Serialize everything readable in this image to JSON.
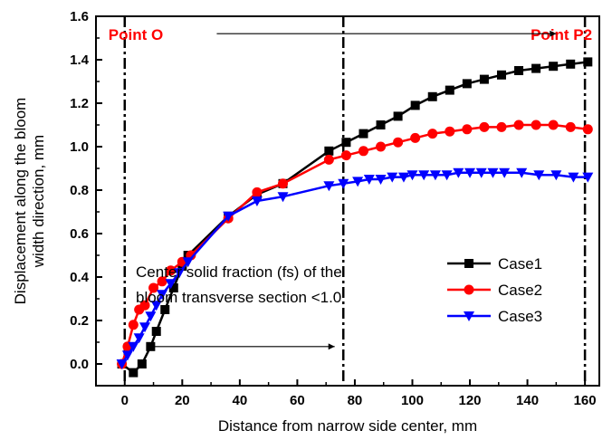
{
  "chart_data": {
    "type": "line",
    "xlabel": "Distance from narrow side center, mm",
    "ylabel_lines": [
      "Displacement along the bloom",
      "width direction, mm"
    ],
    "xlim": [
      -10,
      165
    ],
    "ylim": [
      -0.1,
      1.6
    ],
    "x_ticks": [
      "0",
      "20",
      "40",
      "60",
      "80",
      "100",
      "120",
      "140",
      "160"
    ],
    "x_tick_values": [
      0,
      20,
      40,
      60,
      80,
      100,
      120,
      140,
      160
    ],
    "y_ticks": [
      "0.0",
      "0.2",
      "0.4",
      "0.6",
      "0.8",
      "1.0",
      "1.2",
      "1.4",
      "1.6"
    ],
    "y_tick_values": [
      0.0,
      0.2,
      0.4,
      0.6,
      0.8,
      1.0,
      1.2,
      1.4,
      1.6
    ],
    "grid": false,
    "legend_position": "right-middle",
    "colors": {
      "case1": "#000000",
      "case2": "#ff0000",
      "case3": "#0000ff",
      "point_label": "#ff0000"
    },
    "series": [
      {
        "name": "Case1",
        "marker": "square",
        "color": "#000000",
        "x": [
          -1,
          3,
          6,
          9,
          11,
          14,
          17,
          20,
          22,
          36,
          46,
          55,
          71,
          77,
          83,
          89,
          95,
          101,
          107,
          113,
          119,
          125,
          131,
          137,
          143,
          149,
          155,
          161
        ],
        "y": [
          0.0,
          -0.04,
          0.0,
          0.08,
          0.15,
          0.25,
          0.35,
          0.45,
          0.5,
          0.68,
          0.78,
          0.83,
          0.98,
          1.02,
          1.06,
          1.1,
          1.14,
          1.19,
          1.23,
          1.26,
          1.29,
          1.31,
          1.33,
          1.35,
          1.36,
          1.37,
          1.38,
          1.39
        ]
      },
      {
        "name": "Case2",
        "marker": "circle",
        "color": "#ff0000",
        "x": [
          -1,
          1,
          3,
          5,
          7,
          10,
          13,
          16,
          20,
          23,
          36,
          46,
          55,
          71,
          77,
          83,
          89,
          95,
          101,
          107,
          113,
          119,
          125,
          131,
          137,
          143,
          149,
          155,
          161
        ],
        "y": [
          0.0,
          0.08,
          0.18,
          0.25,
          0.27,
          0.35,
          0.38,
          0.43,
          0.47,
          0.5,
          0.67,
          0.79,
          0.83,
          0.94,
          0.96,
          0.98,
          1.0,
          1.02,
          1.04,
          1.06,
          1.07,
          1.08,
          1.09,
          1.09,
          1.1,
          1.1,
          1.1,
          1.09,
          1.08
        ]
      },
      {
        "name": "Case3",
        "marker": "triangle-down",
        "color": "#0000ff",
        "x": [
          -1,
          1,
          3,
          5,
          7,
          9,
          11,
          13,
          16,
          19,
          22,
          36,
          46,
          55,
          71,
          76,
          81,
          85,
          89,
          93,
          97,
          100,
          104,
          108,
          112,
          116,
          120,
          124,
          128,
          132,
          138,
          144,
          150,
          156,
          161
        ],
        "y": [
          0.0,
          0.04,
          0.08,
          0.12,
          0.17,
          0.22,
          0.27,
          0.32,
          0.37,
          0.42,
          0.47,
          0.68,
          0.75,
          0.77,
          0.82,
          0.83,
          0.84,
          0.85,
          0.85,
          0.86,
          0.86,
          0.87,
          0.87,
          0.87,
          0.87,
          0.88,
          0.88,
          0.88,
          0.88,
          0.88,
          0.88,
          0.87,
          0.87,
          0.86,
          0.86
        ]
      }
    ],
    "vertical_lines": [
      {
        "name": "point-o-line",
        "x": 0
      },
      {
        "name": "mid-line",
        "x": 76
      },
      {
        "name": "point-p2-line",
        "x": 160
      }
    ],
    "point_labels": [
      {
        "name": "point-o-label",
        "text": "Point O",
        "x": 0
      },
      {
        "name": "point-p2-label",
        "text": "Point P2",
        "x": 160
      }
    ],
    "arrows": [
      {
        "name": "top-arrow",
        "x_from": 32,
        "x_to": 150,
        "y": 1.52
      },
      {
        "name": "bottom-arrow",
        "x_from": 8,
        "x_to": 73,
        "y": 0.08
      }
    ],
    "annotation_lines": [
      "Center solid fraction (fs) of the",
      "bloom transverse section <1.0"
    ]
  }
}
